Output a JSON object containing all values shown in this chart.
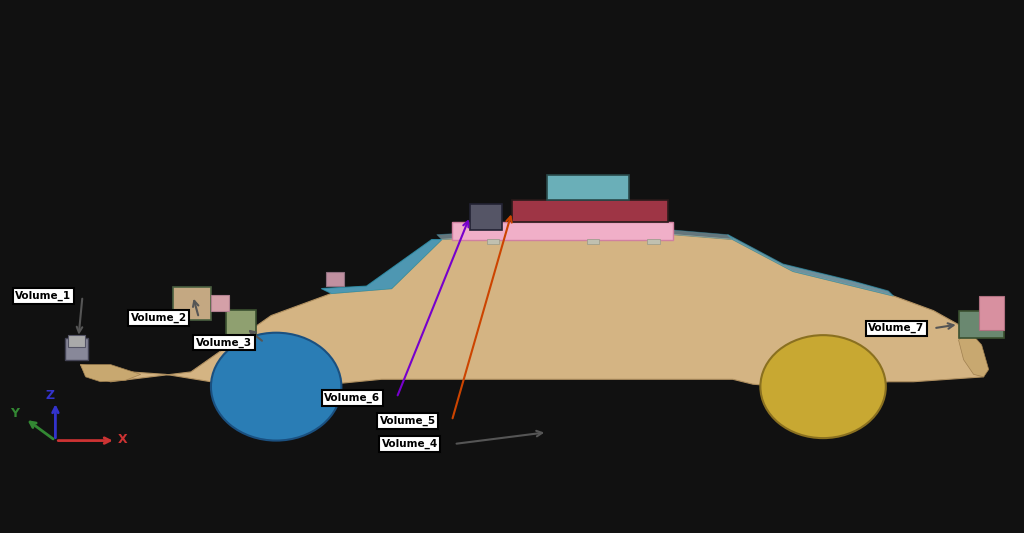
{
  "background_color": "#ffffff",
  "outer_bg": "#111111",
  "fig_size": [
    10.24,
    5.33
  ],
  "dpi": 100,
  "labels": {
    "Volume_1": {
      "text": "Volume_1",
      "arrow_color": "#555555"
    },
    "Volume_2": {
      "text": "Volume_2",
      "arrow_color": "#555555"
    },
    "Volume_3": {
      "text": "Volume_3",
      "arrow_color": "#555555"
    },
    "Volume_4": {
      "text": "Volume_4",
      "arrow_color": "#555555"
    },
    "Volume_5": {
      "text": "Volume_5",
      "arrow_color": "#cc4400"
    },
    "Volume_6": {
      "text": "Volume_6",
      "arrow_color": "#7700cc"
    },
    "Volume_7": {
      "text": "Volume_7",
      "arrow_color": "#555555"
    }
  },
  "car_body_color": "#d4b483",
  "front_wheel_color": "#2a7db5",
  "rear_wheel_color": "#c8a832",
  "windshield_color": "#5aafcf",
  "roof_sensor_platform_color": "#f0afc8",
  "volume4_color": "#6aafb8",
  "volume5_color": "#9e3545",
  "volume6_color": "#555566",
  "volume2_color": "#c4a882",
  "volume3_color": "#8fa070",
  "volume7_color": "#6a8870",
  "volume1_color": "#888899",
  "mirror_color": "#c090a0",
  "mirror_edge": "#907080",
  "axis_z_color": "#3333cc",
  "axis_y_color": "#338833",
  "axis_x_color": "#cc3333"
}
